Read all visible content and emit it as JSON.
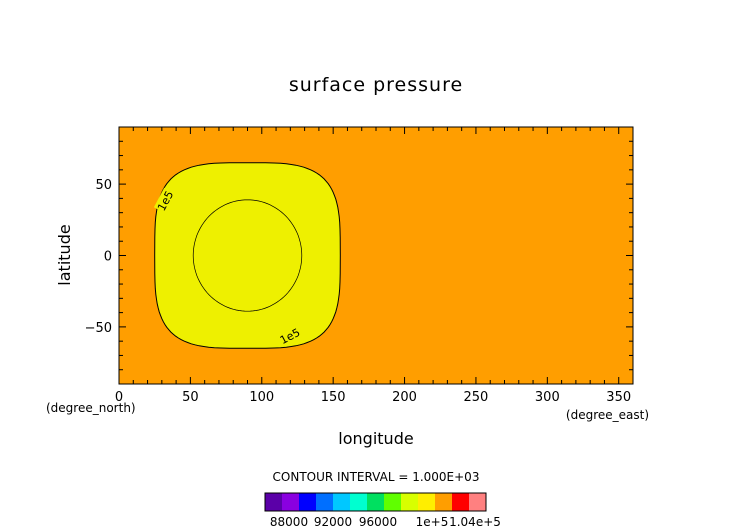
{
  "chart_data": {
    "type": "heatmap",
    "title": "surface pressure",
    "xlabel": "longitude",
    "ylabel": "latitude",
    "x_units": "(degree_east)",
    "y_units": "(degree_north)",
    "xlim": [
      0,
      360
    ],
    "ylim": [
      -90,
      90
    ],
    "x_ticks": [
      0,
      50,
      100,
      150,
      200,
      250,
      300,
      350
    ],
    "y_ticks": [
      -50,
      0,
      50
    ],
    "y_tick_labels": [
      "−50",
      "0",
      "50"
    ],
    "background_value": 100500,
    "background_color": "#ff9e00",
    "region": {
      "value": 100000,
      "color": "#eef000",
      "center_lon": 90,
      "center_lat": 0,
      "half_width_lon": 65,
      "half_height_lat": 65
    },
    "contours": [
      {
        "level": 100000,
        "label": "1e5",
        "center_lon": 90,
        "center_lat": 0,
        "half_width_lon": 65,
        "half_height_lat": 65,
        "shape": "superellipse"
      },
      {
        "level": 99000,
        "label": "",
        "center_lon": 90,
        "center_lat": 0,
        "half_width_lon": 38,
        "half_height_lat": 39,
        "shape": "ellipse"
      }
    ],
    "contour_interval_text": "CONTOUR INTERVAL = 1.000E+03",
    "colorbar": {
      "colors": [
        "#5b00a8",
        "#8a00e0",
        "#0000ff",
        "#006fff",
        "#00c8ff",
        "#00ffd0",
        "#00e060",
        "#60ff00",
        "#d8ff00",
        "#ffee00",
        "#ff9e00",
        "#ff0000",
        "#ff8080"
      ],
      "tick_labels": [
        "88000",
        "92000",
        "96000",
        "1e+5",
        "1.04e+5"
      ]
    }
  }
}
